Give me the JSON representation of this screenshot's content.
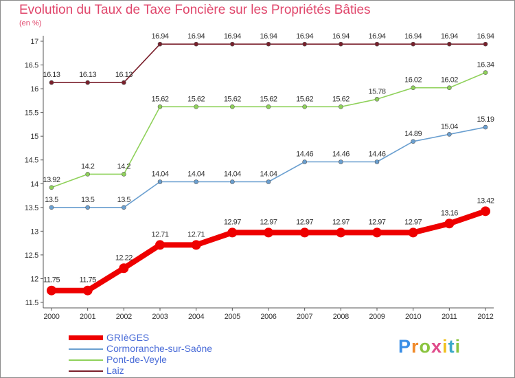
{
  "chart_data": {
    "type": "line",
    "title": "Evolution du Taux de Taxe Foncière sur les Propriétés Bâties",
    "unit_label": "(en %)",
    "x": [
      2000,
      2001,
      2002,
      2003,
      2004,
      2005,
      2006,
      2007,
      2008,
      2009,
      2010,
      2011,
      2012
    ],
    "x_labels": [
      "2000",
      "2001",
      "2002",
      "2003",
      "2004",
      "2005",
      "2006",
      "2007",
      "2008",
      "2009",
      "2010",
      "2011",
      "2012"
    ],
    "ylim": [
      11.5,
      17
    ],
    "yticks": [
      11.5,
      12,
      12.5,
      13,
      13.5,
      14,
      14.5,
      15,
      15.5,
      16,
      16.5,
      17
    ],
    "ytick_labels": [
      "11.5",
      "12",
      "12.5",
      "13",
      "13.5",
      "14",
      "14.5",
      "15",
      "15.5",
      "16",
      "16.5",
      "17"
    ],
    "grid": false,
    "legend_position": "bottom-left",
    "series": [
      {
        "name": "Laiz",
        "color": "#7a1f2b",
        "values": [
          16.13,
          16.13,
          16.13,
          16.94,
          16.94,
          16.94,
          16.94,
          16.94,
          16.94,
          16.94,
          16.94,
          16.94,
          16.94
        ],
        "labels": [
          "16.13",
          "16.13",
          "16.13",
          "16.94",
          "16.94",
          "16.94",
          "16.94",
          "16.94",
          "16.94",
          "16.94",
          "16.94",
          "16.94",
          "16.94"
        ]
      },
      {
        "name": "Pont-de-Veyle",
        "color": "#8fd15a",
        "values": [
          13.92,
          14.2,
          14.2,
          15.62,
          15.62,
          15.62,
          15.62,
          15.62,
          15.62,
          15.78,
          16.02,
          16.02,
          16.34
        ],
        "labels": [
          "13.92",
          "14.2",
          "14.2",
          "15.62",
          "15.62",
          "15.62",
          "15.62",
          "15.62",
          "15.62",
          "15.78",
          "16.02",
          "16.02",
          "16.34"
        ]
      },
      {
        "name": "Cormoranche-sur-Saône",
        "color": "#6a9fd0",
        "values": [
          13.5,
          13.5,
          13.5,
          14.04,
          14.04,
          14.04,
          14.04,
          14.46,
          14.46,
          14.46,
          14.89,
          15.04,
          15.19
        ],
        "labels": [
          "13.5",
          "13.5",
          "13.5",
          "14.04",
          "14.04",
          "14.04",
          "14.04",
          "14.46",
          "14.46",
          "14.46",
          "14.89",
          "15.04",
          "15.19"
        ]
      },
      {
        "name": "GRIèGES",
        "color": "#ee0000",
        "values": [
          11.75,
          11.75,
          12.22,
          12.71,
          12.71,
          12.97,
          12.97,
          12.97,
          12.97,
          12.97,
          12.97,
          13.16,
          13.42
        ],
        "labels": [
          "11.75",
          "11.75",
          "12.22",
          "12.71",
          "12.71",
          "12.97",
          "12.97",
          "12.97",
          "12.97",
          "12.97",
          "12.97",
          "13.16",
          "13.42"
        ]
      }
    ],
    "legend": [
      "GRIèGES",
      "Cormoranche-sur-Saône",
      "Pont-de-Veyle",
      "Laiz"
    ]
  },
  "logo": {
    "letters": [
      "P",
      "r",
      "o",
      "x",
      "i",
      "t",
      "i"
    ],
    "colors": [
      "#3a8ee6",
      "#f08a2a",
      "#8ac43f",
      "#e04a8a",
      "#f0c020",
      "#3aa8c8",
      "#8ac43f"
    ]
  },
  "colors": {
    "title": "#e0466b",
    "axis": "#555555",
    "label": "#333333",
    "legend_text": "#4a6cd8"
  }
}
